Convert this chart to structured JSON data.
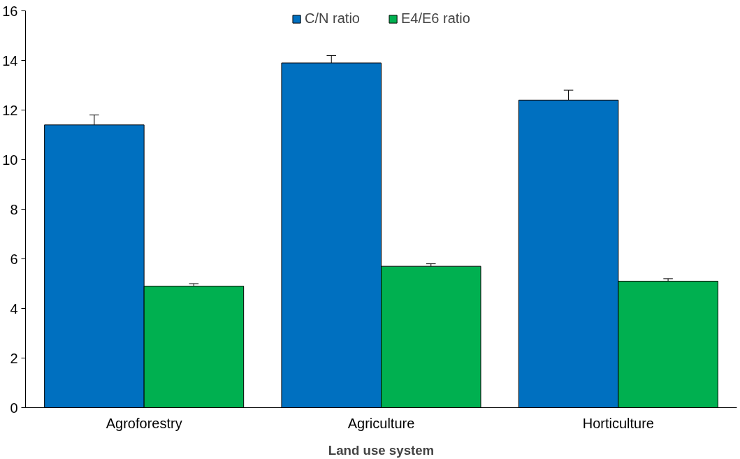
{
  "chart_data": {
    "type": "bar",
    "xlabel": "Land use system",
    "categories": [
      "Agroforestry",
      "Agriculture",
      "Horticulture"
    ],
    "series": [
      {
        "name": "C/N ratio",
        "color": "#0070c0",
        "values": [
          11.4,
          13.9,
          12.4
        ],
        "errors": [
          [
            11.4,
            11.8
          ],
          [
            13.9,
            14.2
          ],
          [
            12.4,
            12.8
          ]
        ]
      },
      {
        "name": "E4/E6 ratio",
        "color": "#00b050",
        "values": [
          4.9,
          5.7,
          5.1
        ],
        "errors": [
          [
            4.9,
            5.0
          ],
          [
            5.7,
            5.8
          ],
          [
            5.1,
            5.2
          ]
        ]
      }
    ],
    "ylim": [
      0,
      16
    ],
    "yticks": [
      0,
      2,
      4,
      6,
      8,
      10,
      12,
      14,
      16
    ],
    "grid": false,
    "legend": "top"
  }
}
